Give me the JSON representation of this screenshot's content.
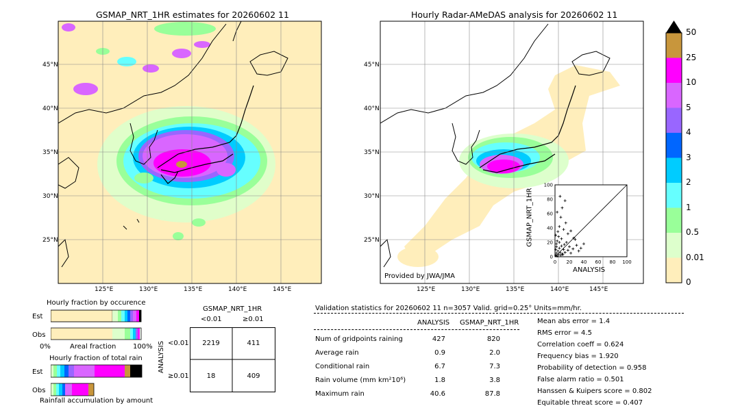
{
  "map_left": {
    "title": "GSMAP_NRT_1HR estimates for 20260602 11",
    "lat_labels": [
      "45°N",
      "40°N",
      "35°N",
      "30°N",
      "25°N"
    ],
    "lon_labels": [
      "125°E",
      "130°E",
      "135°E",
      "140°E",
      "145°E"
    ]
  },
  "map_right": {
    "title": "Hourly Radar-AMeDAS analysis for 20260602 11",
    "lat_labels": [
      "45°N",
      "40°N",
      "35°N",
      "30°N",
      "25°N"
    ],
    "lon_labels": [
      "125°E",
      "130°E",
      "135°E",
      "140°E",
      "145°E"
    ],
    "credit": "Provided by JWA/JMA"
  },
  "colorbar": {
    "ticks": [
      "50",
      "25",
      "10",
      "5",
      "4",
      "3",
      "2",
      "1",
      "0.5",
      "0.01",
      "0"
    ],
    "colors": [
      "#c8963c",
      "#ff00ff",
      "#d966ff",
      "#9966ff",
      "#0066ff",
      "#00ccff",
      "#66ffff",
      "#99ff99",
      "#ddffcc",
      "#ffeebb"
    ]
  },
  "occurrence": {
    "title": "Hourly fraction by occurence",
    "row_est": "Est",
    "row_obs": "Obs",
    "x_start": "0%",
    "x_mid": "Areal fraction",
    "x_end": "100%"
  },
  "total_rain": {
    "title": "Hourly fraction of total rain",
    "row_est": "Est",
    "row_obs": "Obs",
    "footer": "Rainfall accumulation by amount"
  },
  "contingency": {
    "title": "GSMAP_NRT_1HR",
    "col_lt": "<0.01",
    "col_ge": "≥0.01",
    "row_axis": "ANALYSIS",
    "row_lt": "<0.01",
    "row_ge": "≥0.01",
    "v11": "2219",
    "v12": "411",
    "v21": "18",
    "v22": "409"
  },
  "validation": {
    "header": "Validation statistics for 20260602 11  n=3057 Valid. grid=0.25° Units=mm/hr.",
    "col_analysis": "ANALYSIS",
    "col_gsmap": "GSMAP_NRT_1HR",
    "rows": [
      {
        "label": "Num of gridpoints raining",
        "a": "427",
        "g": "820"
      },
      {
        "label": "Average rain",
        "a": "0.9",
        "g": "2.0"
      },
      {
        "label": "Conditional rain",
        "a": "6.7",
        "g": "7.3"
      },
      {
        "label": "Rain volume (mm km²10⁶)",
        "a": "1.8",
        "g": "3.8"
      },
      {
        "label": "Maximum rain",
        "a": "40.6",
        "g": "87.8"
      }
    ],
    "scores": [
      "Mean abs error =    1.4",
      "RMS error =    4.5",
      "Correlation coeff =  0.624",
      "Frequency bias =  1.920",
      "Probability of detection =  0.958",
      "False alarm ratio =  0.501",
      "Hanssen & Kuipers score =  0.802",
      "Equitable threat score =  0.407"
    ]
  },
  "chart_data": [
    {
      "type": "scatter",
      "xlabel": "ANALYSIS",
      "ylabel": "GSMAP_NRT_1HR",
      "xlim": [
        0,
        100
      ],
      "ylim": [
        0,
        100
      ],
      "ticks": [
        "0",
        "20",
        "40",
        "60",
        "80",
        "100"
      ],
      "points": [
        [
          1,
          2
        ],
        [
          2,
          5
        ],
        [
          3,
          1
        ],
        [
          4,
          8
        ],
        [
          5,
          3
        ],
        [
          6,
          12
        ],
        [
          7,
          6
        ],
        [
          8,
          2
        ],
        [
          9,
          15
        ],
        [
          10,
          4
        ],
        [
          2,
          18
        ],
        [
          3,
          22
        ],
        [
          5,
          28
        ],
        [
          12,
          10
        ],
        [
          14,
          6
        ],
        [
          16,
          20
        ],
        [
          18,
          9
        ],
        [
          20,
          14
        ],
        [
          22,
          5
        ],
        [
          25,
          11
        ],
        [
          28,
          24
        ],
        [
          30,
          16
        ],
        [
          33,
          8
        ],
        [
          36,
          12
        ],
        [
          40,
          18
        ],
        [
          4,
          35
        ],
        [
          6,
          42
        ],
        [
          8,
          55
        ],
        [
          3,
          62
        ],
        [
          12,
          38
        ],
        [
          15,
          47
        ],
        [
          18,
          32
        ],
        [
          22,
          36
        ],
        [
          10,
          68
        ],
        [
          7,
          84
        ],
        [
          14,
          78
        ],
        [
          26,
          26
        ],
        [
          1,
          10
        ],
        [
          2,
          14
        ],
        [
          6,
          20
        ],
        [
          9,
          25
        ],
        [
          11,
          3
        ],
        [
          13,
          17
        ],
        [
          1,
          30
        ]
      ]
    },
    {
      "type": "bar",
      "title": "Hourly fraction by occurence",
      "categories": [
        "Est",
        "Obs"
      ],
      "stacked": true
    }
  ]
}
